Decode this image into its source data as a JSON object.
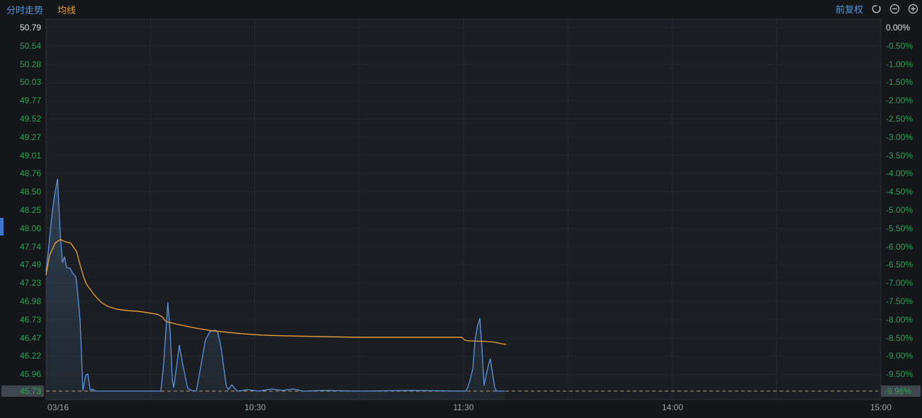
{
  "header": {
    "tabs": [
      {
        "label": "分时走势",
        "color": "#5596d8"
      },
      {
        "label": "均线",
        "color": "#e8a23c"
      }
    ],
    "adjust_label": "前复权",
    "icons": [
      "rotate-ccw-reset",
      "zoom-out",
      "zoom-in"
    ]
  },
  "colors": {
    "background": "#141619",
    "plot_background": "#1a1d21",
    "price_line": "#5e93dd",
    "price_fill": "#50789e",
    "ma_line": "#e8a23c",
    "limit_dashed_line": "#b9a37a",
    "down_label_green": "#2EA155",
    "neutral_label_white": "#dfe3e6",
    "time_label_gray": "#98a0a8",
    "highlight_box": "#40464d",
    "grid_h": "#23262b",
    "grid_v": "#262a30",
    "border": "#2d3138"
  },
  "chart_data": {
    "type": "line",
    "title": "分时走势 intraday price chart, limit-down day",
    "prev_close": 50.79,
    "limit_down_price": 45.73,
    "limit_down_pct_label": "-9.96%",
    "x_axis": {
      "labels": [
        {
          "text": "03/16",
          "m": 0,
          "align": "left"
        },
        {
          "text": "10:30",
          "m": 60,
          "align": "center"
        },
        {
          "text": "11:30",
          "m": 120,
          "align": "center"
        },
        {
          "text": "14:00",
          "m": 180,
          "align": "center"
        },
        {
          "text": "15:00",
          "m": 240,
          "align": "center"
        }
      ],
      "range_minutes": [
        0,
        240
      ],
      "gridline_every_min": 30
    },
    "y_axis": {
      "left_price_labels": [
        "50.79",
        "50.54",
        "50.28",
        "50.03",
        "49.77",
        "49.52",
        "49.27",
        "49.01",
        "48.76",
        "48.50",
        "48.25",
        "48.00",
        "47.74",
        "47.49",
        "47.23",
        "46.98",
        "46.73",
        "46.47",
        "46.22",
        "45.96",
        "45.73"
      ],
      "right_pct_labels": [
        "0.00%",
        "-0.50%",
        "-1.00%",
        "-1.50%",
        "-2.00%",
        "-2.50%",
        "-3.00%",
        "-3.50%",
        "-4.00%",
        "-4.50%",
        "-5.00%",
        "-5.50%",
        "-6.00%",
        "-6.50%",
        "-7.00%",
        "-7.50%",
        "-8.00%",
        "-8.50%",
        "-9.00%",
        "-9.50%",
        "-9.96%"
      ],
      "pct_abs_values": [
        0,
        0.5,
        1,
        1.5,
        2,
        2.5,
        3,
        3.5,
        4,
        4.5,
        5,
        5.5,
        6,
        6.5,
        7,
        7.5,
        8,
        8.5,
        9,
        9.5,
        9.96
      ],
      "range": [
        45.73,
        50.79
      ],
      "grid": true
    },
    "legend_position": "top-left",
    "series": [
      {
        "name": "price",
        "color": "#5e93dd",
        "points": [
          [
            0,
            47.4
          ],
          [
            0.8,
            47.75
          ],
          [
            1.6,
            48.15
          ],
          [
            2.4,
            48.45
          ],
          [
            3.3,
            48.68
          ],
          [
            4.1,
            47.91
          ],
          [
            4.7,
            47.52
          ],
          [
            5.3,
            47.6
          ],
          [
            5.9,
            47.45
          ],
          [
            6.9,
            47.44
          ],
          [
            7.7,
            47.37
          ],
          [
            8.6,
            47.32
          ],
          [
            9.2,
            47.03
          ],
          [
            9.8,
            46.7
          ],
          [
            10.6,
            45.74
          ],
          [
            11.4,
            45.95
          ],
          [
            12.0,
            45.97
          ],
          [
            12.7,
            45.74
          ],
          [
            13.4,
            45.76
          ],
          [
            14.2,
            45.73
          ],
          [
            33.0,
            45.73
          ],
          [
            33.8,
            46.1
          ],
          [
            35.0,
            46.96
          ],
          [
            35.7,
            46.54
          ],
          [
            36.3,
            45.88
          ],
          [
            36.7,
            45.78
          ],
          [
            37.7,
            46.14
          ],
          [
            38.3,
            46.37
          ],
          [
            39.3,
            46.1
          ],
          [
            40.7,
            45.77
          ],
          [
            41.8,
            45.74
          ],
          [
            43.2,
            45.73
          ],
          [
            44.4,
            46.05
          ],
          [
            45.8,
            46.44
          ],
          [
            47.1,
            46.56
          ],
          [
            48.5,
            46.58
          ],
          [
            49.3,
            46.56
          ],
          [
            50.3,
            46.34
          ],
          [
            51.1,
            46.05
          ],
          [
            51.8,
            45.8
          ],
          [
            52.4,
            45.75
          ],
          [
            53.4,
            45.82
          ],
          [
            54.2,
            45.77
          ],
          [
            55.0,
            45.73
          ],
          [
            58.0,
            45.75
          ],
          [
            61.0,
            45.73
          ],
          [
            65.0,
            45.76
          ],
          [
            68.0,
            45.74
          ],
          [
            71.0,
            45.76
          ],
          [
            74.0,
            45.73
          ],
          [
            80.0,
            45.74
          ],
          [
            90.0,
            45.73
          ],
          [
            105.0,
            45.74
          ],
          [
            120.6,
            45.73
          ],
          [
            121.2,
            45.78
          ],
          [
            122.0,
            45.9
          ],
          [
            122.7,
            46.05
          ],
          [
            123.3,
            46.43
          ],
          [
            124.0,
            46.63
          ],
          [
            124.7,
            46.74
          ],
          [
            125.3,
            46.34
          ],
          [
            125.9,
            45.81
          ],
          [
            126.5,
            45.95
          ],
          [
            127.1,
            46.08
          ],
          [
            127.7,
            46.18
          ],
          [
            128.3,
            46.0
          ],
          [
            129.0,
            45.77
          ],
          [
            129.6,
            45.73
          ],
          [
            131.8,
            45.73
          ]
        ]
      },
      {
        "name": "均线",
        "color": "#e8a23c",
        "points": [
          [
            0,
            47.35
          ],
          [
            1,
            47.62
          ],
          [
            2.6,
            47.79
          ],
          [
            4.1,
            47.84
          ],
          [
            5.5,
            47.81
          ],
          [
            7.1,
            47.79
          ],
          [
            8.8,
            47.67
          ],
          [
            9.6,
            47.52
          ],
          [
            10.8,
            47.32
          ],
          [
            11.6,
            47.22
          ],
          [
            13.7,
            47.08
          ],
          [
            15.7,
            46.97
          ],
          [
            17.7,
            46.91
          ],
          [
            20.4,
            46.87
          ],
          [
            23.4,
            46.85
          ],
          [
            26.5,
            46.84
          ],
          [
            29.5,
            46.82
          ],
          [
            32.0,
            46.8
          ],
          [
            33.2,
            46.77
          ],
          [
            34.5,
            46.7
          ],
          [
            37.7,
            46.66
          ],
          [
            40.7,
            46.63
          ],
          [
            43.8,
            46.6
          ],
          [
            47.9,
            46.57
          ],
          [
            52.0,
            46.55
          ],
          [
            56.0,
            46.53
          ],
          [
            62.1,
            46.51
          ],
          [
            68.3,
            46.5
          ],
          [
            78.4,
            46.49
          ],
          [
            88.6,
            46.48
          ],
          [
            105.0,
            46.48
          ],
          [
            119.4,
            46.48
          ],
          [
            120.4,
            46.44
          ],
          [
            121.4,
            46.43
          ],
          [
            127.0,
            46.42
          ],
          [
            129.0,
            46.41
          ],
          [
            131.0,
            46.39
          ],
          [
            132.2,
            46.38
          ]
        ]
      }
    ]
  }
}
